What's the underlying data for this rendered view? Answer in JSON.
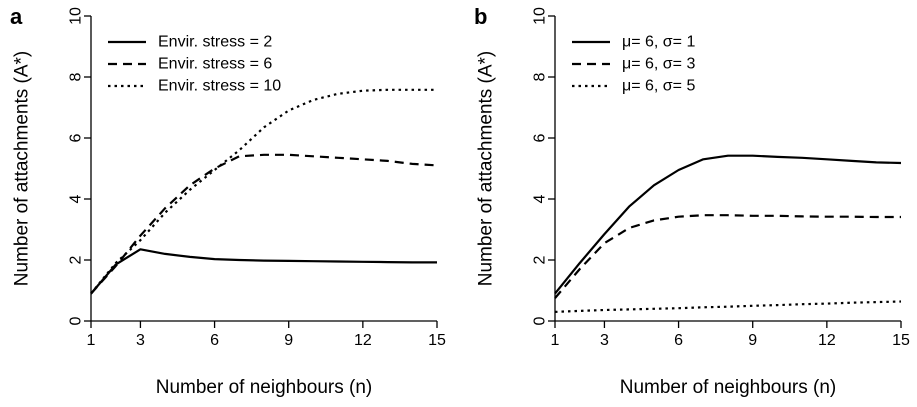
{
  "chart_data": [
    {
      "type": "line",
      "panel_label": "a",
      "xlabel": "Number of neighbours (n)",
      "ylabel": "Number of attachments (A*)",
      "xlim": [
        1,
        15
      ],
      "ylim": [
        0,
        10
      ],
      "xticks": [
        "1",
        "3",
        "6",
        "9",
        "12",
        "15"
      ],
      "yticks": [
        "0",
        "2",
        "4",
        "6",
        "8",
        "10"
      ],
      "legend_position": "top-left",
      "series": [
        {
          "name": "Envir. stress = 2",
          "style": "solid",
          "x": [
            1,
            2,
            3,
            4,
            5,
            6,
            7,
            8,
            9,
            10,
            11,
            12,
            13,
            14,
            15
          ],
          "y": [
            0.9,
            1.85,
            2.35,
            2.2,
            2.1,
            2.03,
            2.0,
            1.98,
            1.97,
            1.96,
            1.95,
            1.94,
            1.93,
            1.92,
            1.92
          ]
        },
        {
          "name": "Envir. stress = 6",
          "style": "dashed",
          "x": [
            1,
            2,
            3,
            4,
            5,
            6,
            7,
            8,
            9,
            10,
            11,
            12,
            13,
            14,
            15
          ],
          "y": [
            0.9,
            1.8,
            2.8,
            3.7,
            4.45,
            5.0,
            5.4,
            5.45,
            5.45,
            5.4,
            5.35,
            5.3,
            5.25,
            5.15,
            5.1
          ]
        },
        {
          "name": "Envir. stress = 10",
          "style": "dotted",
          "x": [
            1,
            2,
            3,
            4,
            5,
            6,
            7,
            8,
            9,
            10,
            11,
            12,
            13,
            14,
            15
          ],
          "y": [
            0.9,
            1.9,
            2.65,
            3.55,
            4.3,
            4.95,
            5.6,
            6.35,
            6.9,
            7.25,
            7.45,
            7.55,
            7.58,
            7.58,
            7.58
          ]
        }
      ]
    },
    {
      "type": "line",
      "panel_label": "b",
      "xlabel": "Number of neighbours (n)",
      "ylabel": "Number of attachments (A*)",
      "xlim": [
        1,
        15
      ],
      "ylim": [
        0,
        10
      ],
      "xticks": [
        "1",
        "3",
        "6",
        "9",
        "12",
        "15"
      ],
      "yticks": [
        "0",
        "2",
        "4",
        "6",
        "8",
        "10"
      ],
      "legend_position": "top-left",
      "series": [
        {
          "name": "μ= 6, σ= 1",
          "style": "solid",
          "x": [
            1,
            2,
            3,
            4,
            5,
            6,
            7,
            8,
            9,
            10,
            11,
            12,
            13,
            14,
            15
          ],
          "y": [
            0.9,
            1.9,
            2.85,
            3.75,
            4.45,
            4.95,
            5.3,
            5.42,
            5.42,
            5.38,
            5.35,
            5.3,
            5.25,
            5.2,
            5.18
          ]
        },
        {
          "name": "μ= 6, σ= 3",
          "style": "dashed",
          "x": [
            1,
            2,
            3,
            4,
            5,
            6,
            7,
            8,
            9,
            10,
            11,
            12,
            13,
            14,
            15
          ],
          "y": [
            0.75,
            1.7,
            2.55,
            3.05,
            3.3,
            3.42,
            3.47,
            3.47,
            3.45,
            3.45,
            3.43,
            3.42,
            3.42,
            3.41,
            3.41
          ]
        },
        {
          "name": "μ= 6, σ= 5",
          "style": "dotted",
          "x": [
            1,
            2,
            3,
            4,
            5,
            6,
            7,
            8,
            9,
            10,
            11,
            12,
            13,
            14,
            15
          ],
          "y": [
            0.3,
            0.33,
            0.36,
            0.38,
            0.4,
            0.42,
            0.45,
            0.47,
            0.5,
            0.52,
            0.55,
            0.57,
            0.6,
            0.62,
            0.64
          ]
        }
      ]
    }
  ]
}
